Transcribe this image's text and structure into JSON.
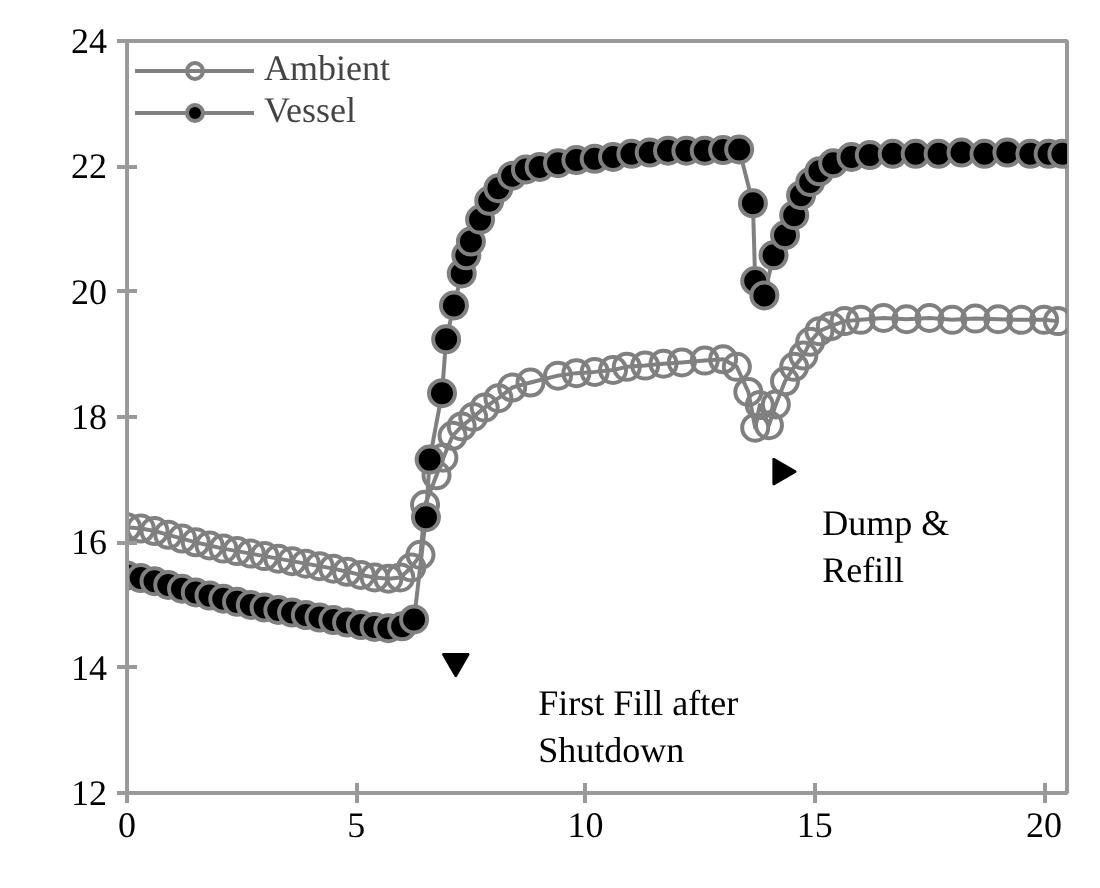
{
  "chart_data": {
    "type": "line",
    "xlim": [
      0,
      20.5
    ],
    "ylim": [
      12,
      24
    ],
    "xticks": [
      0,
      5,
      10,
      15,
      20
    ],
    "yticks": [
      12,
      14,
      16,
      18,
      20,
      22,
      24
    ],
    "grid": false,
    "legend": "top left",
    "marker": "circle",
    "line_style": "solid",
    "series": [
      {
        "name": "Ambient",
        "color": "#808080",
        "x": [
          0,
          0.3,
          0.6,
          0.9,
          1.2,
          1.5,
          1.8,
          2.1,
          2.4,
          2.7,
          3,
          3.3,
          3.6,
          3.9,
          4.2,
          4.5,
          4.8,
          5.1,
          5.4,
          5.7,
          5.96,
          6.2,
          6.4,
          6.5,
          6.75,
          6.9,
          7.1,
          7.3,
          7.55,
          7.8,
          8.1,
          8.4,
          8.8,
          9.4,
          9.8,
          10.2,
          10.6,
          10.9,
          11.3,
          11.7,
          12.1,
          12.6,
          13,
          13.3,
          13.55,
          13.7,
          13.8,
          14,
          14.15,
          14.35,
          14.55,
          14.75,
          14.9,
          15.1,
          15.35,
          15.65,
          16,
          16.5,
          17,
          17.5,
          18,
          18.5,
          19,
          19.5,
          20,
          20.3
        ],
        "values": [
          16.24,
          16.22,
          16.18,
          16.12,
          16.06,
          16.0,
          15.95,
          15.9,
          15.86,
          15.82,
          15.78,
          15.74,
          15.7,
          15.66,
          15.62,
          15.58,
          15.53,
          15.48,
          15.44,
          15.42,
          15.44,
          15.6,
          15.8,
          16.6,
          17.07,
          17.35,
          17.7,
          17.85,
          18.0,
          18.15,
          18.3,
          18.47,
          18.55,
          18.66,
          18.7,
          18.72,
          18.75,
          18.8,
          18.82,
          18.85,
          18.87,
          18.9,
          18.92,
          18.8,
          18.4,
          17.83,
          18.19,
          17.87,
          18.2,
          18.57,
          18.8,
          18.98,
          19.2,
          19.37,
          19.45,
          19.53,
          19.55,
          19.58,
          19.56,
          19.58,
          19.55,
          19.57,
          19.56,
          19.55,
          19.55,
          19.53
        ]
      },
      {
        "name": "Vessel",
        "color": "#000000",
        "x": [
          0,
          0.3,
          0.6,
          0.9,
          1.2,
          1.5,
          1.8,
          2.1,
          2.4,
          2.7,
          3,
          3.3,
          3.6,
          3.9,
          4.2,
          4.5,
          4.8,
          5.1,
          5.4,
          5.7,
          6,
          6.26,
          6.52,
          6.6,
          6.87,
          6.96,
          7.13,
          7.3,
          7.4,
          7.5,
          7.7,
          7.9,
          8.1,
          8.4,
          8.7,
          9,
          9.4,
          9.8,
          10.2,
          10.6,
          11,
          11.4,
          11.8,
          12.2,
          12.6,
          13,
          13.35,
          13.65,
          13.7,
          13.9,
          14.1,
          14.35,
          14.55,
          14.7,
          14.9,
          15.1,
          15.4,
          15.8,
          16.2,
          16.7,
          17.2,
          17.7,
          18.2,
          18.7,
          19.2,
          19.7,
          20.1,
          20.4
        ],
        "values": [
          15.47,
          15.43,
          15.38,
          15.32,
          15.26,
          15.2,
          15.15,
          15.1,
          15.05,
          15.0,
          14.96,
          14.92,
          14.88,
          14.84,
          14.8,
          14.76,
          14.72,
          14.68,
          14.65,
          14.63,
          14.66,
          14.77,
          16.4,
          17.32,
          18.38,
          19.24,
          19.78,
          20.29,
          20.58,
          20.8,
          21.15,
          21.45,
          21.65,
          21.85,
          21.95,
          21.99,
          22.05,
          22.1,
          22.12,
          22.15,
          22.2,
          22.22,
          22.25,
          22.25,
          22.25,
          22.26,
          22.27,
          21.41,
          20.17,
          19.94,
          20.58,
          20.9,
          21.22,
          21.54,
          21.75,
          21.92,
          22.05,
          22.15,
          22.18,
          22.2,
          22.2,
          22.2,
          22.22,
          22.2,
          22.22,
          22.2,
          22.2,
          22.2
        ]
      }
    ],
    "annotations": [
      {
        "text": "First Fill after\nShutdown",
        "x": 7.17,
        "y": 14.1
      },
      {
        "text": "Dump &\nRefill",
        "x": 14.26,
        "y": 17.13
      }
    ]
  }
}
